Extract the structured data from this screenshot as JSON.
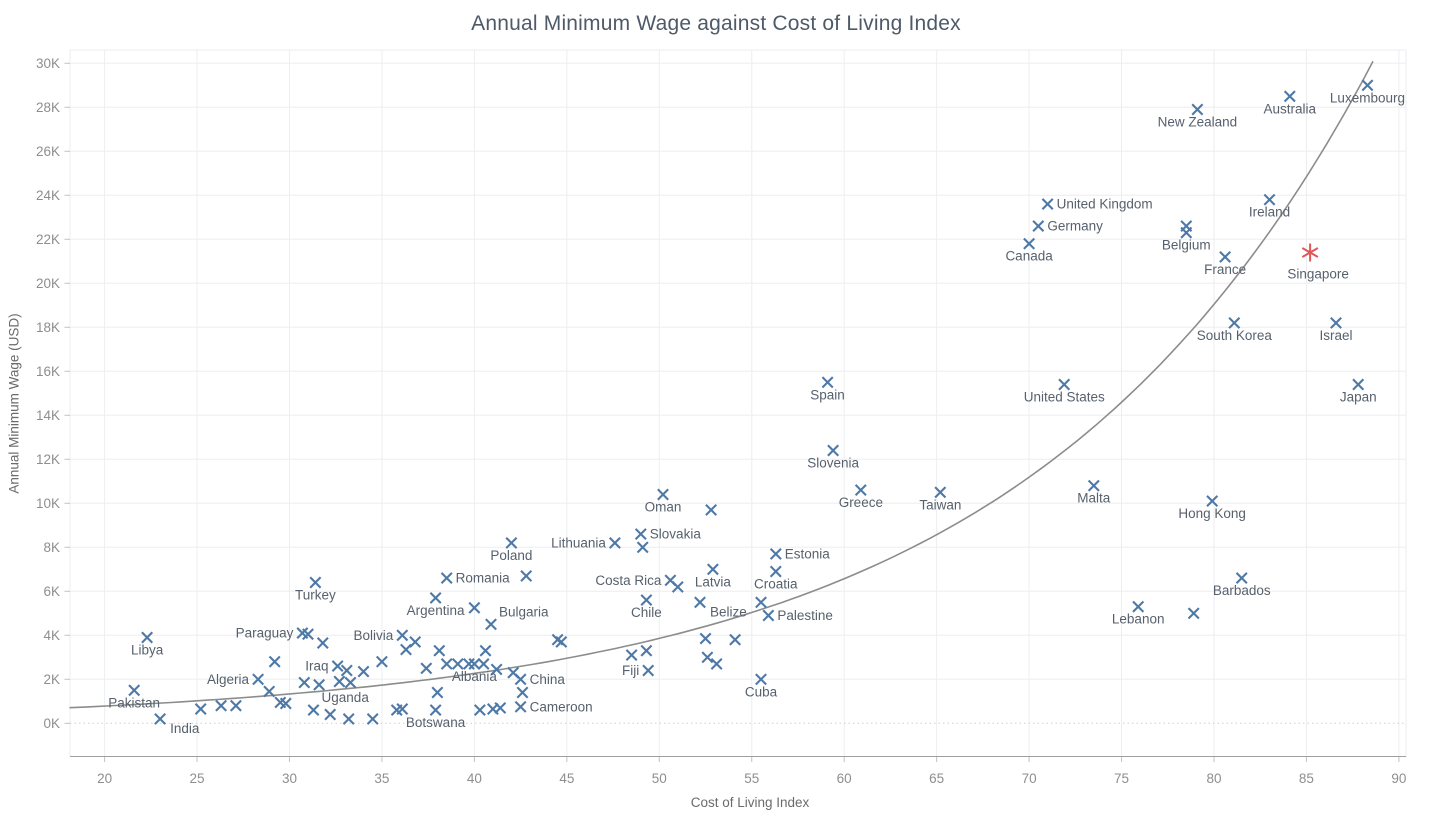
{
  "title": "Annual Minimum Wage against Cost of Living Index",
  "x_axis": {
    "title": "Cost of Living Index",
    "min": 18.1,
    "max": 91.8,
    "ticks": [
      20,
      25,
      30,
      35,
      40,
      45,
      50,
      55,
      60,
      65,
      70,
      75,
      80,
      85,
      90
    ]
  },
  "y_axis": {
    "title": "Annual Minimum Wage (USD)",
    "min": 0,
    "max": 30.6,
    "ticks": [
      0,
      2,
      4,
      6,
      8,
      10,
      12,
      14,
      16,
      18,
      20,
      22,
      24,
      26,
      28,
      30
    ],
    "tick_suffix": "K"
  },
  "colors": {
    "point": "#4e79a7",
    "highlight": "#e15759",
    "trend": "#8c8c8c",
    "grid": "#eceef0",
    "zero_line": "#cfcfcf",
    "axis_line": "#9f9f9f",
    "tick": "#c2c2c2",
    "label": "#57616d",
    "tick_text": "#8e8e8e"
  },
  "chart_data": {
    "type": "scatter",
    "title": "Annual Minimum Wage against Cost of Living Index",
    "xlabel": "Cost of Living Index",
    "ylabel": "Annual Minimum Wage (USD)",
    "x_range": [
      18.1,
      91.8
    ],
    "y_range_k": [
      0,
      30.6
    ],
    "grid": true,
    "marker": "x",
    "units": "wage_k = annual minimum wage in thousands of USD",
    "labeled_points": [
      {
        "country": "Pakistan",
        "x": 21.6,
        "wage_k": 1.5,
        "pos": "b"
      },
      {
        "country": "India",
        "x": 23.0,
        "wage_k": 0.2,
        "pos": "br"
      },
      {
        "country": "Libya",
        "x": 22.3,
        "wage_k": 3.9,
        "pos": "b"
      },
      {
        "country": "Algeria",
        "x": 28.3,
        "wage_k": 2.0,
        "pos": "l"
      },
      {
        "country": "Paraguay",
        "x": 30.7,
        "wage_k": 4.1,
        "pos": "l"
      },
      {
        "country": "Iraq",
        "x": 32.6,
        "wage_k": 2.6,
        "pos": "l"
      },
      {
        "country": "Uganda",
        "x": 31.3,
        "wage_k": 0.6,
        "pos": "ar"
      },
      {
        "country": "Botswana",
        "x": 37.9,
        "wage_k": 0.6,
        "pos": "b"
      },
      {
        "country": "Turkey",
        "x": 31.4,
        "wage_k": 6.4,
        "pos": "b"
      },
      {
        "country": "Bolivia",
        "x": 36.1,
        "wage_k": 4.0,
        "pos": "l"
      },
      {
        "country": "Argentina",
        "x": 37.9,
        "wage_k": 5.7,
        "pos": "b"
      },
      {
        "country": "Romania",
        "x": 38.5,
        "wage_k": 6.6,
        "pos": "r"
      },
      {
        "country": "Poland",
        "x": 42.0,
        "wage_k": 8.2,
        "pos": "b"
      },
      {
        "country": "Lithuania",
        "x": 47.6,
        "wage_k": 8.2,
        "pos": "l"
      },
      {
        "country": "Slovakia",
        "x": 49.0,
        "wage_k": 8.6,
        "pos": "r"
      },
      {
        "country": "Oman",
        "x": 50.2,
        "wage_k": 10.4,
        "pos": "b"
      },
      {
        "country": "Costa Rica",
        "x": 50.6,
        "wage_k": 6.5,
        "pos": "l"
      },
      {
        "country": "Latvia",
        "x": 52.9,
        "wage_k": 7.0,
        "pos": "b"
      },
      {
        "country": "Estonia",
        "x": 56.3,
        "wage_k": 7.7,
        "pos": "r"
      },
      {
        "country": "Croatia",
        "x": 56.3,
        "wage_k": 6.9,
        "pos": "b"
      },
      {
        "country": "Chile",
        "x": 49.3,
        "wage_k": 5.6,
        "pos": "b"
      },
      {
        "country": "Belize",
        "x": 52.2,
        "wage_k": 5.5,
        "pos": "br"
      },
      {
        "country": "Palestine",
        "x": 55.9,
        "wage_k": 4.9,
        "pos": "r"
      },
      {
        "country": "Fiji",
        "x": 49.4,
        "wage_k": 2.4,
        "pos": "l"
      },
      {
        "country": "Cuba",
        "x": 55.5,
        "wage_k": 2.0,
        "pos": "b"
      },
      {
        "country": "Albania",
        "x": 40.0,
        "wage_k": 2.7,
        "pos": "b"
      },
      {
        "country": "China",
        "x": 42.5,
        "wage_k": 2.0,
        "pos": "r"
      },
      {
        "country": "Cameroon",
        "x": 42.5,
        "wage_k": 0.75,
        "pos": "r"
      },
      {
        "country": "Bulgaria",
        "x": 40.9,
        "wage_k": 4.5,
        "pos": "ar"
      },
      {
        "country": "Spain",
        "x": 59.1,
        "wage_k": 15.5,
        "pos": "b"
      },
      {
        "country": "Slovenia",
        "x": 59.4,
        "wage_k": 12.4,
        "pos": "b"
      },
      {
        "country": "Greece",
        "x": 60.9,
        "wage_k": 10.6,
        "pos": "b"
      },
      {
        "country": "Taiwan",
        "x": 65.2,
        "wage_k": 10.5,
        "pos": "b"
      },
      {
        "country": "Malta",
        "x": 73.5,
        "wage_k": 10.8,
        "pos": "b"
      },
      {
        "country": "United States",
        "x": 71.9,
        "wage_k": 15.4,
        "pos": "b"
      },
      {
        "country": "Hong Kong",
        "x": 79.9,
        "wage_k": 10.1,
        "pos": "b"
      },
      {
        "country": "Lebanon",
        "x": 75.9,
        "wage_k": 5.3,
        "pos": "b"
      },
      {
        "country": "Barbados",
        "x": 81.5,
        "wage_k": 6.6,
        "pos": "b"
      },
      {
        "country": "South Korea",
        "x": 81.1,
        "wage_k": 18.2,
        "pos": "b"
      },
      {
        "country": "Israel",
        "x": 86.6,
        "wage_k": 18.2,
        "pos": "b"
      },
      {
        "country": "Japan",
        "x": 87.8,
        "wage_k": 15.4,
        "pos": "b"
      },
      {
        "country": "United Kingdom",
        "x": 71.0,
        "wage_k": 23.6,
        "pos": "r"
      },
      {
        "country": "Germany",
        "x": 70.5,
        "wage_k": 22.6,
        "pos": "r"
      },
      {
        "country": "Canada",
        "x": 70.0,
        "wage_k": 21.8,
        "pos": "b"
      },
      {
        "country": "Belgium",
        "x": 78.5,
        "wage_k": 22.3,
        "pos": "b"
      },
      {
        "country": "France",
        "x": 80.6,
        "wage_k": 21.2,
        "pos": "b"
      },
      {
        "country": "New Zealand",
        "x": 79.1,
        "wage_k": 27.9,
        "pos": "b"
      },
      {
        "country": "Australia",
        "x": 84.1,
        "wage_k": 28.5,
        "pos": "b"
      },
      {
        "country": "Luxembourg",
        "x": 88.3,
        "wage_k": 29.0,
        "pos": "b"
      },
      {
        "country": "Ireland",
        "x": 83.0,
        "wage_k": 23.8,
        "pos": "b"
      }
    ],
    "highlight_point": {
      "country": "Singapore",
      "x": 85.2,
      "wage_k": 21.4,
      "pos": "B",
      "marker": "asterisk"
    },
    "unlabeled_points": [
      [
        78.5,
        22.6
      ],
      [
        78.9,
        5.0
      ],
      [
        52.8,
        9.7
      ],
      [
        49.1,
        8.0
      ],
      [
        42.8,
        6.7
      ],
      [
        40.0,
        5.25
      ],
      [
        51.0,
        6.2
      ],
      [
        55.5,
        5.5
      ],
      [
        52.5,
        3.85
      ],
      [
        54.1,
        3.8
      ],
      [
        31.0,
        4.05
      ],
      [
        31.8,
        3.65
      ],
      [
        36.8,
        3.7
      ],
      [
        36.3,
        3.35
      ],
      [
        38.1,
        3.3
      ],
      [
        40.6,
        3.3
      ],
      [
        44.5,
        3.8
      ],
      [
        44.7,
        3.7
      ],
      [
        29.2,
        2.8
      ],
      [
        35.0,
        2.8
      ],
      [
        37.4,
        2.5
      ],
      [
        38.5,
        2.7
      ],
      [
        39.1,
        2.7
      ],
      [
        39.7,
        2.7
      ],
      [
        40.5,
        2.7
      ],
      [
        41.2,
        2.45
      ],
      [
        42.1,
        2.3
      ],
      [
        48.5,
        3.1
      ],
      [
        49.3,
        3.3
      ],
      [
        52.6,
        3.0
      ],
      [
        53.1,
        2.7
      ],
      [
        33.1,
        2.4
      ],
      [
        34.0,
        2.35
      ],
      [
        30.8,
        1.85
      ],
      [
        31.6,
        1.75
      ],
      [
        32.7,
        1.9
      ],
      [
        33.3,
        1.85
      ],
      [
        28.9,
        1.45
      ],
      [
        38.0,
        1.4
      ],
      [
        42.6,
        1.4
      ],
      [
        29.5,
        0.95
      ],
      [
        29.8,
        0.9
      ],
      [
        25.2,
        0.65
      ],
      [
        26.3,
        0.8
      ],
      [
        27.1,
        0.8
      ],
      [
        32.2,
        0.4
      ],
      [
        34.5,
        0.2
      ],
      [
        35.8,
        0.6
      ],
      [
        36.1,
        0.65
      ],
      [
        40.3,
        0.6
      ],
      [
        41.0,
        0.65
      ],
      [
        41.4,
        0.7
      ],
      [
        33.2,
        0.2
      ]
    ],
    "trend": {
      "type": "exponential",
      "formula": "wage_k = a * exp(b * x)",
      "a": 0.27,
      "b": 0.0532,
      "x_start": 18.1,
      "x_end": 88.95
    }
  }
}
